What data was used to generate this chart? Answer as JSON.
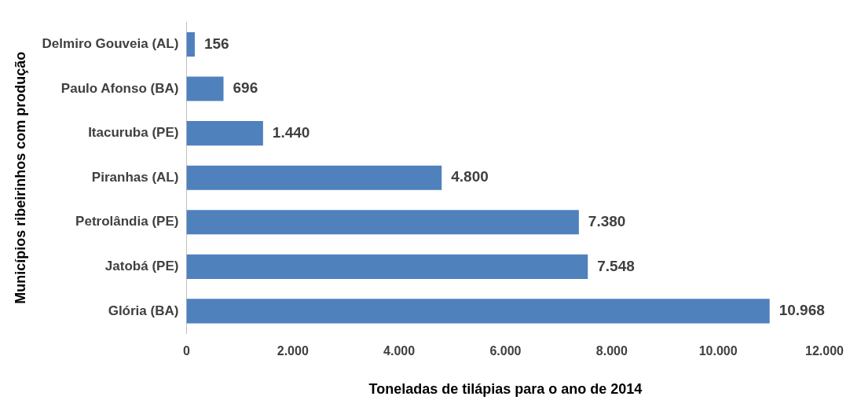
{
  "chart_data": {
    "type": "bar",
    "orientation": "horizontal",
    "xlabel": "Toneladas de tilápias para o ano de 2014",
    "ylabel": "Municípios ribeirinhos com produção",
    "categories": [
      "Delmiro Gouveia (AL)",
      "Paulo Afonso (BA)",
      "Itacuruba (PE)",
      "Piranhas (AL)",
      "Petrolândia (PE)",
      "Jatobá (PE)",
      "Glória (BA)"
    ],
    "values": [
      156,
      696,
      1440,
      4800,
      7380,
      7548,
      10968
    ],
    "value_labels": [
      "156",
      "696",
      "1.440",
      "4.800",
      "7.380",
      "7.548",
      "10.968"
    ],
    "color": "#4f81bd",
    "xlim": [
      0,
      12000
    ],
    "xticks": [
      0,
      {
        "value": 2000,
        "label": "2.000"
      },
      {
        "value": 4000,
        "label": "4.000"
      },
      {
        "value": 6000,
        "label": "6.000"
      },
      {
        "value": 8000,
        "label": "8.000"
      },
      {
        "value": 10000,
        "label": "10.000"
      },
      {
        "value": 12000,
        "label": "12.000"
      }
    ],
    "grid": false,
    "legend": false
  }
}
